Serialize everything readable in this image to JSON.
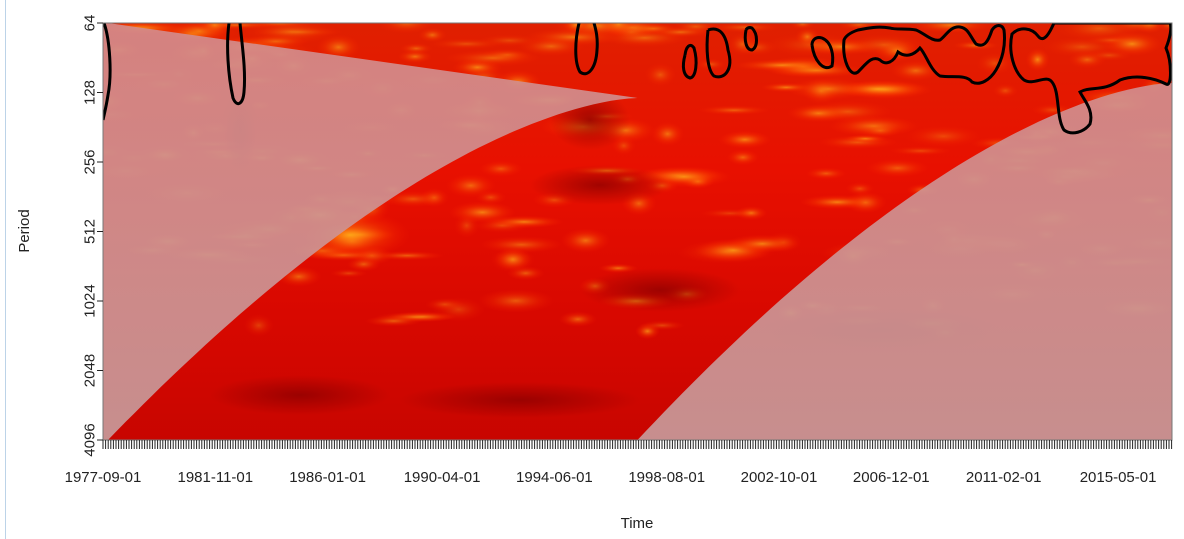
{
  "chart_data": {
    "type": "heatmap",
    "title": "",
    "xlabel": "Time",
    "ylabel": "Period",
    "x_tick_labels": [
      "1977-09-01",
      "1981-11-01",
      "1986-01-01",
      "1990-04-01",
      "1994-06-01",
      "1998-08-01",
      "2002-10-01",
      "2006-12-01",
      "2011-02-01",
      "2015-05-01"
    ],
    "y_tick_labels": [
      "64",
      "128",
      "256",
      "512",
      "1024",
      "2048",
      "4096"
    ],
    "y_values": [
      64,
      128,
      256,
      512,
      1024,
      2048,
      4096
    ],
    "y_scale": "log2",
    "y_inverted": true,
    "x_range": [
      "1977-09-01",
      "2017-05-01"
    ],
    "y_range": [
      64,
      4096
    ],
    "colormap": [
      "#ffe14a",
      "#ff6a00",
      "#ff1500",
      "#e10000",
      "#b50000",
      "#8a0000"
    ],
    "cone_of_influence": true,
    "cone_color": "#d8a0a0",
    "significance_contours": "black",
    "grid": false,
    "legend": "none"
  }
}
